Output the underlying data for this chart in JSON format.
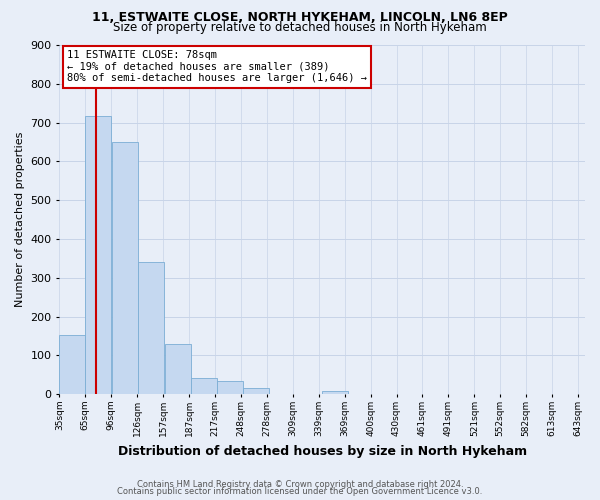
{
  "title1": "11, ESTWAITE CLOSE, NORTH HYKEHAM, LINCOLN, LN6 8EP",
  "title2": "Size of property relative to detached houses in North Hykeham",
  "xlabel": "Distribution of detached houses by size in North Hykeham",
  "ylabel": "Number of detached properties",
  "bar_values": [
    152,
    718,
    650,
    340,
    130,
    43,
    33,
    16,
    0,
    0,
    8,
    0,
    0,
    0,
    0,
    0,
    0,
    0
  ],
  "bin_starts": [
    35,
    65,
    96,
    126,
    157,
    187,
    217,
    248,
    278,
    309,
    339,
    369,
    400,
    430,
    461,
    491,
    521,
    552
  ],
  "bin_width": 30,
  "tick_labels": [
    "35sqm",
    "65sqm",
    "96sqm",
    "126sqm",
    "157sqm",
    "187sqm",
    "217sqm",
    "248sqm",
    "278sqm",
    "309sqm",
    "339sqm",
    "369sqm",
    "400sqm",
    "430sqm",
    "461sqm",
    "491sqm",
    "521sqm",
    "552sqm",
    "582sqm",
    "613sqm",
    "643sqm"
  ],
  "bar_color": "#c5d8f0",
  "bar_edge_color": "#7badd4",
  "property_line_x": 78,
  "property_line_color": "#cc0000",
  "annotation_line1": "11 ESTWAITE CLOSE: 78sqm",
  "annotation_line2": "← 19% of detached houses are smaller (389)",
  "annotation_line3": "80% of semi-detached houses are larger (1,646) →",
  "annotation_box_edgecolor": "#cc0000",
  "ylim": [
    0,
    900
  ],
  "yticks": [
    0,
    100,
    200,
    300,
    400,
    500,
    600,
    700,
    800,
    900
  ],
  "footer1": "Contains HM Land Registry data © Crown copyright and database right 2024.",
  "footer2": "Contains public sector information licensed under the Open Government Licence v3.0.",
  "background_color": "#e8eef8",
  "grid_color": "#c8d4e8",
  "xmin": 35,
  "xmax": 643
}
